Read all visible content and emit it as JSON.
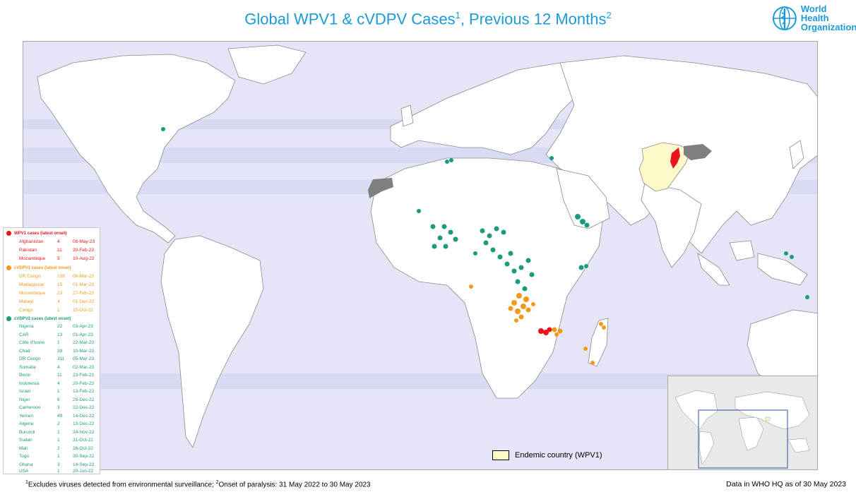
{
  "title": {
    "main": "Global WPV1 & cVDPV Cases",
    "sup1": "1",
    "middle": ", Previous 12 Months",
    "sup2": "2"
  },
  "logo": {
    "line1": "World Health",
    "line2": "Organization",
    "icon": "who-emblem-icon"
  },
  "colors": {
    "wpv1": "#e8141c",
    "cvdpv1": "#f19a1a",
    "cvdpv2": "#1a9b7c",
    "endemic": "#fff8c8",
    "ocean": "#e4e6f7",
    "land": "#ffffff",
    "excluded": "#7f7f7f",
    "title": "#1a9ad6"
  },
  "legend": {
    "wpv1": {
      "heading": "WPV1 cases (latest onset)",
      "rows": [
        {
          "country": "Afghanistan",
          "count": "4",
          "date": "08-May-23"
        },
        {
          "country": "Pakistan",
          "count": "11",
          "date": "20-Feb-23"
        },
        {
          "country": "Mozambique",
          "count": "5",
          "date": "10-Aug-22"
        }
      ]
    },
    "cvdpv1": {
      "heading": "cVDPV1 cases (latest onset)",
      "rows": [
        {
          "country": "DR Congo",
          "count": "156",
          "date": "06-Mar-23"
        },
        {
          "country": "Madagascar",
          "count": "15",
          "date": "01-Mar-23"
        },
        {
          "country": "Mozambique",
          "count": "23",
          "date": "27-Feb-23"
        },
        {
          "country": "Malawi",
          "count": "4",
          "date": "01-Dec-22"
        },
        {
          "country": "Congo",
          "count": "1",
          "date": "15-Oct-22"
        }
      ]
    },
    "cvdpv2": {
      "heading": "cVDPV2 cases (latest onset)",
      "rows": [
        {
          "country": "Nigeria",
          "count": "22",
          "date": "03-Apr-23"
        },
        {
          "country": "CAR",
          "count": "13",
          "date": "01-Apr-23"
        },
        {
          "country": "Côte d'Ivoire",
          "count": "1",
          "date": "22-Mar-23"
        },
        {
          "country": "Chad",
          "count": "39",
          "date": "10-Mar-23"
        },
        {
          "country": "DR Congo",
          "count": "311",
          "date": "05-Mar-23"
        },
        {
          "country": "Somalia",
          "count": "4",
          "date": "02-Mar-23"
        },
        {
          "country": "Benin",
          "count": "11",
          "date": "23-Feb-23"
        },
        {
          "country": "Indonesia",
          "count": "4",
          "date": "20-Feb-23"
        },
        {
          "country": "Israel",
          "count": "1",
          "date": "13-Feb-23"
        },
        {
          "country": "Niger",
          "count": "6",
          "date": "25-Dec-22"
        },
        {
          "country": "Cameroon",
          "count": "3",
          "date": "22-Dec-22"
        },
        {
          "country": "Yemen",
          "count": "49",
          "date": "14-Dec-22"
        },
        {
          "country": "Algeria",
          "count": "2",
          "date": "13-Dec-22"
        },
        {
          "country": "Burundi",
          "count": "1",
          "date": "24-Nov-22"
        },
        {
          "country": "Sudan",
          "count": "1",
          "date": "31-Oct-22"
        },
        {
          "country": "Mali",
          "count": "2",
          "date": "26-Oct-22"
        },
        {
          "country": "Togo",
          "count": "1",
          "date": "30-Sep-22"
        },
        {
          "country": "Ghana",
          "count": "3",
          "date": "14-Sep-22"
        },
        {
          "country": "USA",
          "count": "1",
          "date": "20-Jun-22"
        }
      ]
    }
  },
  "endemic_label": "Endemic country (WPV1)",
  "footnote": {
    "sup1": "1",
    "text1": "Excludes viruses detected from environmental surveillance;  ",
    "sup2": "2",
    "text2": "Onset of paralysis: 31 May 2022 to 30 May 2023"
  },
  "data_note": "Data in WHO HQ as of 30 May 2023"
}
